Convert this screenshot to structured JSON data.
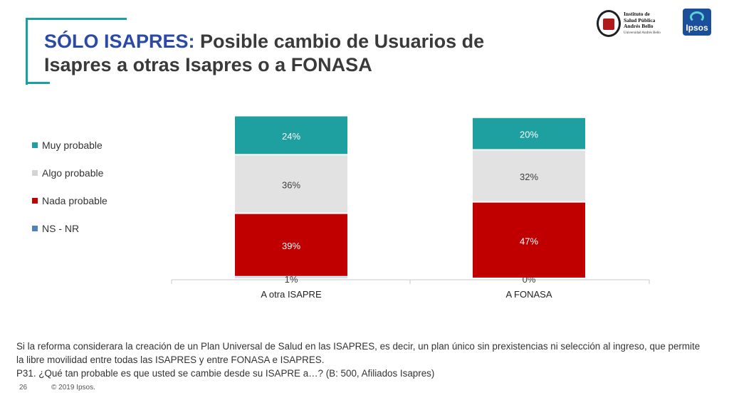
{
  "title": {
    "highlight": "SÓLO ISAPRES:",
    "line1_rest": " Posible cambio de Usuarios de",
    "line2": "Isapres a otras Isapres o a FONASA"
  },
  "logos": {
    "institute_lines": [
      "Instituto de",
      "Salud Pública",
      "Andrés Bello"
    ],
    "institute_sub": "Universidad Andrés Bello",
    "ipsos": "Ipsos"
  },
  "chart_data": {
    "type": "bar",
    "stacked": true,
    "categories": [
      "A otra ISAPRE",
      "A FONASA"
    ],
    "series": [
      {
        "name": "NS - NR",
        "values": [
          1,
          0
        ],
        "color": "#4f81bd",
        "labels": [
          "1%",
          "0%"
        ]
      },
      {
        "name": "Nada probable",
        "values": [
          39,
          47
        ],
        "color": "#c00000",
        "labels": [
          "39%",
          "47%"
        ]
      },
      {
        "name": "Algo probable",
        "values": [
          36,
          32
        ],
        "color": "#e2e2e2",
        "labels": [
          "36%",
          "32%"
        ]
      },
      {
        "name": "Muy probable",
        "values": [
          24,
          20
        ],
        "color": "#1ea0a0",
        "labels": [
          "24%",
          "20%"
        ]
      }
    ],
    "legend_order": [
      "Muy probable",
      "Algo probable",
      "Nada probable",
      "NS - NR"
    ],
    "legend_position": "left",
    "grid": false,
    "ylim": [
      0,
      100
    ]
  },
  "note": {
    "line1": "Si la reforma considerara la creación de un Plan Universal de Salud en las ISAPRES, es decir, un plan único sin prexistencias ni selección al ingreso, que permite",
    "line2": "la libre movilidad entre todas las ISAPRES y entre FONASA e ISAPRES.",
    "line3": "P31. ¿Qué tan probable es que usted se cambie desde su ISAPRE a…? (B: 500, Afiliados Isapres)"
  },
  "footer": {
    "page": "26",
    "copyright": "© 2019 Ipsos."
  }
}
